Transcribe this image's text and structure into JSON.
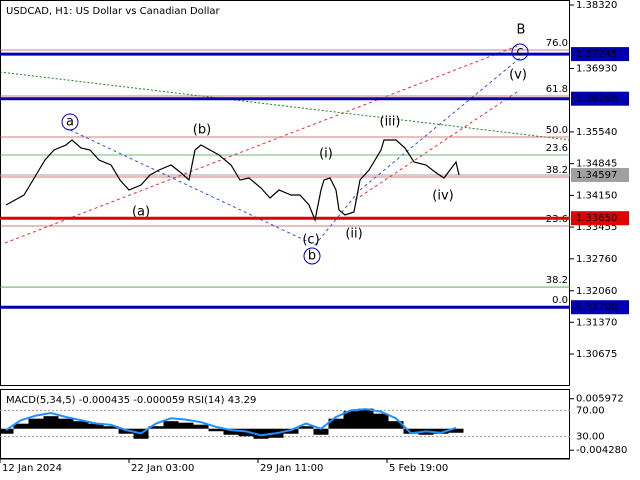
{
  "chart_data": [
    {
      "type": "line",
      "title": "USDCAD, H1:  US Dollar vs Canadian Dollar",
      "color": "#000000",
      "x": [
        2,
        5,
        8,
        12,
        15,
        18,
        22,
        24,
        27,
        30,
        33,
        37,
        40,
        43,
        47,
        50,
        53,
        57,
        60,
        63,
        65,
        67,
        70,
        73,
        77,
        80,
        83,
        87,
        90,
        93,
        97,
        100,
        103,
        105,
        107,
        108,
        110,
        112,
        113,
        115,
        118,
        120,
        123,
        127,
        128,
        132,
        135,
        138,
        142,
        145,
        148,
        150,
        152,
        153
      ],
      "values": [
        1.33939,
        1.34048,
        1.34158,
        1.34596,
        1.34925,
        1.35144,
        1.35253,
        1.35363,
        1.35187,
        1.35144,
        1.34925,
        1.34815,
        1.34486,
        1.34267,
        1.34377,
        1.34596,
        1.34706,
        1.34815,
        1.34662,
        1.34486,
        1.35144,
        1.35253,
        1.35144,
        1.35034,
        1.34815,
        1.34486,
        1.3453,
        1.34311,
        1.34092,
        1.34267,
        1.34158,
        1.34158,
        1.33939,
        1.3361,
        1.34267,
        1.34486,
        1.3453,
        1.34267,
        1.33829,
        1.3372,
        1.33786,
        1.34486,
        1.34706,
        1.35144,
        1.35363,
        1.35363,
        1.35187,
        1.34881,
        1.34815,
        1.34662,
        1.3453,
        1.34706,
        1.34881,
        1.34596
      ],
      "xlim": [
        0,
        190
      ],
      "xticks": [
        {
          "value": 0,
          "label": "12 Jan 2024"
        },
        {
          "value": 43,
          "label": "22 Jan 03:00"
        },
        {
          "value": 86,
          "label": "29 Jan 11:00"
        },
        {
          "value": 129,
          "label": "5 Feb 19:00"
        }
      ],
      "ylim": [
        1.29996,
        1.3843
      ],
      "yticks": [
        {
          "value": 1.3832,
          "label": "1.38320"
        },
        {
          "value": 1.3693,
          "label": "1.36930"
        },
        {
          "value": 1.3554,
          "label": "1.35540"
        },
        1.34845,
        {
          "value": 1.3415,
          "label": "1.34150"
        },
        1.33455,
        {
          "value": 1.3276,
          "label": "1.32760"
        },
        {
          "value": 1.3206,
          "label": "1.32060"
        },
        {
          "value": 1.3137,
          "label": "1.31370"
        },
        1.30675
      ],
      "levels": [
        {
          "value": 1.37245,
          "color": "#0000b0"
        },
        {
          "value": 1.36268,
          "color": "#0000b0"
        },
        {
          "value": 1.34597,
          "color": "#a0a0a0"
        },
        {
          "value": 1.3365,
          "label": "1.33650",
          "color": "#e00000"
        },
        {
          "value": 1.317,
          "label": "1.31700",
          "color": "#0000b0"
        }
      ],
      "fib_levels": [
        {
          "label": "76.0",
          "price": 1.37334,
          "color": "#c05050"
        },
        {
          "label": "61.8",
          "price": 1.36327,
          "color": "#c05050"
        },
        {
          "label": "50.0",
          "price": 1.35428,
          "color": "#c05050"
        },
        {
          "label": "38.2",
          "price": 1.34552,
          "color": "#c05050"
        },
        {
          "label": "23.6",
          "price": 1.33479,
          "color": "#c05050"
        },
        {
          "label": "23.6",
          "price": 1.35034,
          "color": "#40a040"
        },
        {
          "label": "38.2",
          "price": 1.32142,
          "color": "#40a040"
        },
        {
          "label": "0.0",
          "price": 1.31704,
          "color": "#c05050"
        }
      ],
      "wave_labels": [
        {
          "text": "B",
          "color": "#c03030"
        },
        {
          "text": "(v)",
          "color": "#c03030"
        },
        {
          "text": "(iii)",
          "color": "#c03030"
        },
        {
          "text": "(b)",
          "color": "#c03030"
        },
        {
          "text": "(i)",
          "color": "#c03030"
        },
        {
          "text": "(a)",
          "color": "#c03030"
        },
        {
          "text": "(iv)",
          "color": "#c03030"
        },
        {
          "text": "(ii)",
          "color": "#c03030"
        },
        {
          "text": "(c)",
          "color": "#c03030"
        },
        {
          "text": "a",
          "color": "#0000c0",
          "circled": true
        },
        {
          "text": "b",
          "color": "#0000c0",
          "circled": true
        },
        {
          "text": "c",
          "color": "#0000c0",
          "circled": true
        }
      ]
    },
    {
      "type": "macd",
      "title": "MACD(5,34,5) -0.000435 -0.000059 RSI(14) 43.29",
      "x": [
        2,
        7,
        12,
        17,
        22,
        27,
        32,
        37,
        42,
        47,
        52,
        57,
        62,
        67,
        72,
        77,
        82,
        87,
        92,
        97,
        102,
        107,
        112,
        117,
        122,
        127,
        132,
        137,
        142,
        147,
        152
      ],
      "histogram": [
        -0.001,
        0.001,
        0.002,
        0.0025,
        0.002,
        0.0015,
        0.001,
        0.0005,
        -0.001,
        -0.002,
        0.0005,
        0.0015,
        0.0012,
        0.0008,
        -0.0005,
        -0.0012,
        -0.0015,
        -0.002,
        -0.0018,
        -0.001,
        0.0005,
        -0.0012,
        0.002,
        0.0035,
        0.004,
        0.003,
        0.0015,
        -0.001,
        -0.0012,
        -0.001,
        -0.0008
      ],
      "rsi": [
        40,
        55,
        62,
        66,
        60,
        55,
        50,
        48,
        40,
        35,
        50,
        58,
        56,
        52,
        45,
        40,
        38,
        32,
        35,
        40,
        50,
        42,
        60,
        70,
        72,
        68,
        58,
        35,
        38,
        36,
        43.29
      ],
      "histogram_color": "#000000",
      "rsi_color": "#1e90ff",
      "xlim": [
        0,
        190
      ],
      "ylim": [
        -0.00583,
        0.00771
      ],
      "yticks": [
        0.005972,
        {
          "value": -0.00428,
          "label": "-0.004280"
        }
      ],
      "rsi_ylim": [
        -2.6,
        101.1
      ],
      "rsi_yticks": [
        {
          "value": 70,
          "label": "70.00"
        },
        {
          "value": 30,
          "label": "30.00"
        }
      ]
    }
  ]
}
